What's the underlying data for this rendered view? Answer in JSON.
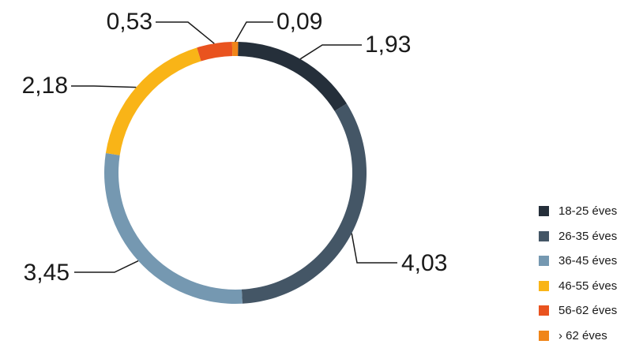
{
  "chart_data": {
    "type": "pie",
    "donut": true,
    "title": "",
    "legend_position": "right",
    "categories": [
      "18-25 éves",
      "26-35 éves",
      "36-45 éves",
      "46-55 éves",
      "56-62 éves",
      "› 62 éves"
    ],
    "values": [
      1.93,
      4.03,
      3.45,
      2.18,
      0.53,
      0.09
    ],
    "value_labels": [
      "1,93",
      "4,03",
      "3,45",
      "2,18",
      "0,53",
      "0,09"
    ],
    "colors": [
      "#252f3a",
      "#445666",
      "#7598b1",
      "#f9b417",
      "#e9531f",
      "#f08519"
    ]
  }
}
